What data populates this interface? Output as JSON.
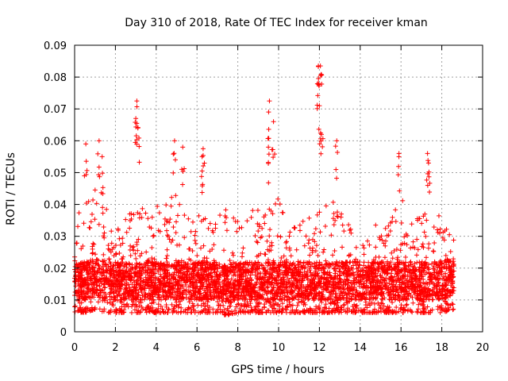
{
  "chart_data": {
    "type": "scatter",
    "title": "Day 310 of 2018, Rate Of TEC Index for receiver kman",
    "xlabel": "GPS time / hours",
    "ylabel": "ROTI / TECUs",
    "xlim": [
      0,
      20
    ],
    "ylim": [
      0,
      0.09
    ],
    "x_ticks": [
      0,
      2,
      4,
      6,
      8,
      10,
      12,
      14,
      16,
      18,
      20
    ],
    "y_ticks": [
      0,
      0.01,
      0.02,
      0.03,
      0.04,
      0.05,
      0.06,
      0.07,
      0.08,
      0.09
    ],
    "x_tick_labels": [
      "0",
      "2",
      "4",
      "6",
      "8",
      "10",
      "12",
      "14",
      "16",
      "18",
      "20"
    ],
    "y_tick_labels": [
      "0",
      "0.01",
      "0.02",
      "0.03",
      "0.04",
      "0.05",
      "0.06",
      "0.07",
      "0.08",
      "0.09"
    ],
    "grid": true,
    "marker": "+",
    "marker_color": "#ff0000",
    "series": [
      {
        "name": "ROTI",
        "x_range": [
          0,
          18.6
        ],
        "envelope": {
          "description": "dense band of points; typical range per time",
          "x": [
            0,
            0.5,
            1.0,
            1.5,
            2.0,
            2.5,
            3.0,
            3.5,
            4.0,
            4.5,
            5.0,
            5.5,
            6.0,
            6.5,
            7.0,
            7.5,
            8.0,
            8.5,
            9.0,
            9.5,
            10.0,
            10.5,
            11.0,
            11.5,
            12.0,
            12.5,
            13.0,
            13.5,
            14.0,
            14.5,
            15.0,
            15.5,
            16.0,
            16.5,
            17.0,
            17.5,
            18.0,
            18.6
          ],
          "low": [
            0.006,
            0.006,
            0.007,
            0.006,
            0.006,
            0.006,
            0.006,
            0.006,
            0.006,
            0.006,
            0.006,
            0.006,
            0.006,
            0.006,
            0.006,
            0.005,
            0.006,
            0.006,
            0.006,
            0.006,
            0.006,
            0.006,
            0.006,
            0.006,
            0.006,
            0.006,
            0.006,
            0.006,
            0.006,
            0.006,
            0.006,
            0.006,
            0.006,
            0.006,
            0.006,
            0.006,
            0.006,
            0.007
          ],
          "high": [
            0.035,
            0.042,
            0.048,
            0.04,
            0.034,
            0.036,
            0.04,
            0.038,
            0.04,
            0.042,
            0.044,
            0.036,
            0.04,
            0.038,
            0.036,
            0.04,
            0.036,
            0.038,
            0.04,
            0.04,
            0.042,
            0.036,
            0.038,
            0.04,
            0.042,
            0.04,
            0.042,
            0.034,
            0.036,
            0.034,
            0.034,
            0.036,
            0.042,
            0.04,
            0.036,
            0.04,
            0.036,
            0.03
          ]
        },
        "peaks": [
          {
            "x": 0.55,
            "y": 0.059
          },
          {
            "x": 1.2,
            "y": 0.06
          },
          {
            "x": 1.35,
            "y": 0.055
          },
          {
            "x": 3.05,
            "y": 0.0725
          },
          {
            "x": 3.0,
            "y": 0.067
          },
          {
            "x": 3.1,
            "y": 0.064
          },
          {
            "x": 4.9,
            "y": 0.06
          },
          {
            "x": 5.3,
            "y": 0.058
          },
          {
            "x": 6.3,
            "y": 0.0575
          },
          {
            "x": 6.25,
            "y": 0.055
          },
          {
            "x": 9.55,
            "y": 0.0725
          },
          {
            "x": 9.5,
            "y": 0.058
          },
          {
            "x": 9.75,
            "y": 0.066
          },
          {
            "x": 11.95,
            "y": 0.0835
          },
          {
            "x": 12.05,
            "y": 0.0835
          },
          {
            "x": 11.95,
            "y": 0.078
          },
          {
            "x": 12.0,
            "y": 0.071
          },
          {
            "x": 12.1,
            "y": 0.062
          },
          {
            "x": 12.85,
            "y": 0.06
          },
          {
            "x": 15.9,
            "y": 0.056
          },
          {
            "x": 17.3,
            "y": 0.056
          },
          {
            "x": 17.35,
            "y": 0.053
          }
        ]
      }
    ]
  }
}
